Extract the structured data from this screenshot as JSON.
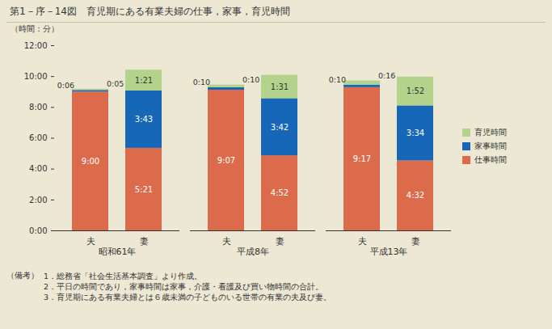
{
  "chart_data": {
    "type": "bar",
    "title": "第1－序－14図　育児期にある有業夫婦の仕事，家事，育児時間",
    "y_label": "（時間：分）",
    "categories": [
      "夫",
      "妻",
      "夫",
      "妻",
      "夫",
      "妻"
    ],
    "groups": [
      "昭和61年",
      "昭和61年",
      "平成8年",
      "平成8年",
      "平成13年",
      "平成13年"
    ],
    "series": [
      {
        "name": "仕事時間",
        "color": "#dc6b4c",
        "values": [
          540,
          321,
          547,
          292,
          557,
          272
        ],
        "value_labels": [
          "9:00",
          "5:21",
          "9:07",
          "4:52",
          "9:17",
          "4:32"
        ]
      },
      {
        "name": "家事時間",
        "color": "#1767b8",
        "values": [
          6,
          223,
          10,
          222,
          10,
          214
        ],
        "value_labels": [
          "0:06",
          "3:43",
          "0:10",
          "3:42",
          "0:10",
          "3:34"
        ]
      },
      {
        "name": "育児時間",
        "color": "#b3d38c",
        "values": [
          5,
          81,
          10,
          91,
          16,
          112
        ],
        "value_labels": [
          "0:05",
          "1:21",
          "0:10",
          "1:31",
          "0:16",
          "1:52"
        ]
      }
    ],
    "ylim": [
      0,
      720
    ],
    "yticks": [
      {
        "value": 0,
        "label": "0:00"
      },
      {
        "value": 120,
        "label": "2:00"
      },
      {
        "value": 240,
        "label": "4:00"
      },
      {
        "value": 360,
        "label": "6:00"
      },
      {
        "value": 480,
        "label": "8:00"
      },
      {
        "value": 600,
        "label": "10:00"
      },
      {
        "value": 720,
        "label": "12:00"
      }
    ],
    "stacked": true,
    "data_labels": true,
    "legend": "right",
    "grid": false,
    "notes_label": "（備考）",
    "notes": [
      "1．総務省「社会生活基本調査」より作成。",
      "2．平日の時間であり，家事時間は家事，介護・看護及び買い物時間の合計。",
      "3．育児期にある有業夫婦とは６歳未満の子どものいる世帯の有業の夫及び妻。"
    ]
  }
}
